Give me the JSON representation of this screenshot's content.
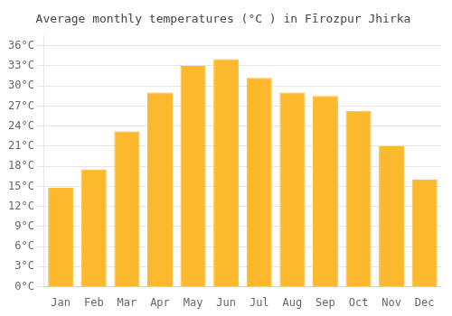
{
  "chart_data": {
    "type": "bar",
    "title": "Average monthly temperatures (°C ) in Fīrozpur Jhirka",
    "categories": [
      "Jan",
      "Feb",
      "Mar",
      "Apr",
      "May",
      "Jun",
      "Jul",
      "Aug",
      "Sep",
      "Oct",
      "Nov",
      "Dec"
    ],
    "values": [
      14.8,
      17.5,
      23.2,
      29.0,
      33.0,
      34.0,
      31.2,
      29.0,
      28.5,
      26.3,
      21.0,
      16.0
    ],
    "color": "#FDB92E",
    "ylim": [
      0,
      37.5
    ],
    "yticks": [
      {
        "value": 0,
        "label": "0°C"
      },
      {
        "value": 3,
        "label": "3°C"
      },
      {
        "value": 6,
        "label": "6°C"
      },
      {
        "value": 9,
        "label": "9°C"
      },
      {
        "value": 12,
        "label": "12°C"
      },
      {
        "value": 15,
        "label": "15°C"
      },
      {
        "value": 18,
        "label": "18°C"
      },
      {
        "value": 21,
        "label": "21°C"
      },
      {
        "value": 24,
        "label": "24°C"
      },
      {
        "value": 27,
        "label": "27°C"
      },
      {
        "value": 30,
        "label": "30°C"
      },
      {
        "value": 33,
        "label": "33°C"
      },
      {
        "value": 36,
        "label": "36°C"
      }
    ],
    "grid": true
  }
}
